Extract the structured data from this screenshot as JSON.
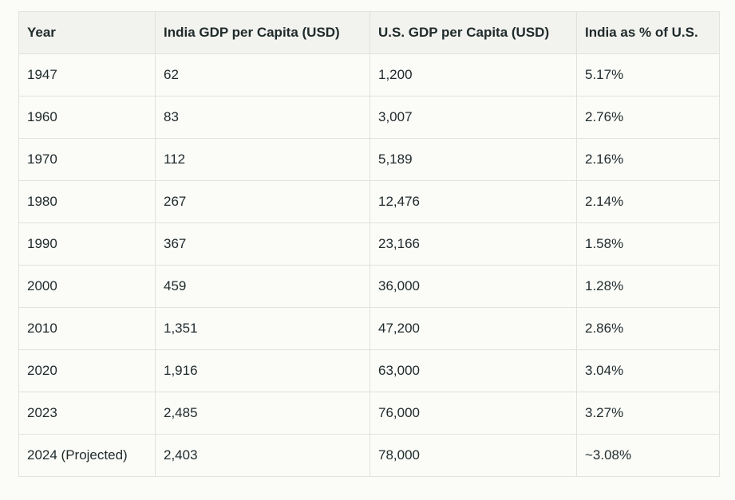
{
  "table": {
    "headers": [
      "Year",
      "India GDP per Capita (USD)",
      "U.S. GDP per Capita (USD)",
      "India as % of U.S."
    ],
    "rows": [
      [
        "1947",
        "62",
        "1,200",
        "5.17%"
      ],
      [
        "1960",
        "83",
        "3,007",
        "2.76%"
      ],
      [
        "1970",
        "112",
        "5,189",
        "2.16%"
      ],
      [
        "1980",
        "267",
        "12,476",
        "2.14%"
      ],
      [
        "1990",
        "367",
        "23,166",
        "1.58%"
      ],
      [
        "2000",
        "459",
        "36,000",
        "1.28%"
      ],
      [
        "2010",
        "1,351",
        "47,200",
        "2.86%"
      ],
      [
        "2020",
        "1,916",
        "63,000",
        "3.04%"
      ],
      [
        "2023",
        "2,485",
        "76,000",
        "3.27%"
      ],
      [
        "2024 (Projected)",
        "2,403",
        "78,000",
        "~3.08%"
      ]
    ]
  }
}
